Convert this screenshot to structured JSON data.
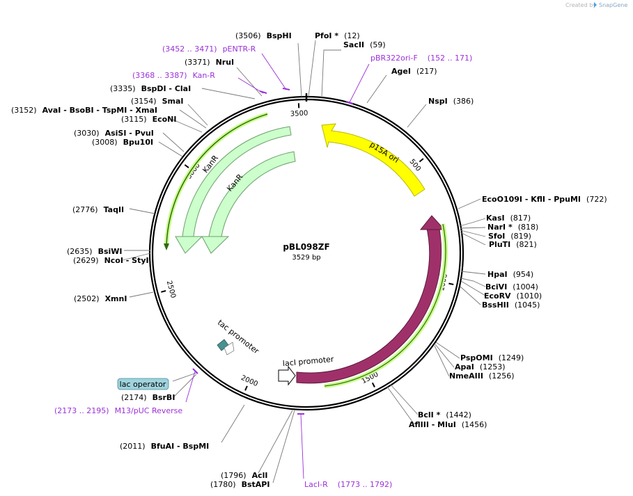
{
  "watermark": {
    "created_by": "Created by",
    "brand": "SnapGene"
  },
  "plasmid": {
    "name": "pBL098ZF",
    "size_label": "3529 bp",
    "length": 3529
  },
  "colors": {
    "p15a_fill": "#ffff00",
    "p15a_stroke": "#b8b800",
    "kanr_fill": "#ccffcc",
    "kanr_stroke": "#6aa06a",
    "laci_fill": "#a0306a",
    "laci_stroke": "#5a1a3a",
    "primer_strip": "#c8ff88",
    "primer_dark": "#2e6a10",
    "tac_fill": "#4a9090",
    "lacop_fill": "#9fd3dd",
    "primer_color": "#9b30d9"
  },
  "ticks": [
    {
      "pos": 500,
      "label": "500"
    },
    {
      "pos": 1000,
      "label": "1000"
    },
    {
      "pos": 1500,
      "label": "1500"
    },
    {
      "pos": 2000,
      "label": "2000"
    },
    {
      "pos": 2500,
      "label": "2500"
    },
    {
      "pos": 3000,
      "label": "3000"
    },
    {
      "pos": 3500,
      "label": "3500"
    }
  ],
  "features": {
    "p15a": {
      "label": "p15A ori"
    },
    "kanr_outer": {
      "label": "KanR"
    },
    "kanr_inner": {
      "label": "KanR"
    },
    "laci": {
      "label": "lacI"
    },
    "laci_promoter": {
      "label": "lacI promoter"
    },
    "tac_promoter": {
      "label": "tac promoter"
    },
    "lac_operator": {
      "label": "lac operator"
    }
  },
  "sites": [
    {
      "pos": "(3506)",
      "name": "BspHI"
    },
    {
      "pos": "(12)",
      "name": "PfoI *"
    },
    {
      "pos": "(59)",
      "name": "SacII"
    },
    {
      "pos": "(217)",
      "name": "AgeI"
    },
    {
      "pos": "(386)",
      "name": "NspI"
    },
    {
      "pos": "(722)",
      "name": "EcoO109I - KflI - PpuMI"
    },
    {
      "pos": "(817)",
      "name": "KasI"
    },
    {
      "pos": "(818)",
      "name": "NarI *"
    },
    {
      "pos": "(819)",
      "name": "SfoI"
    },
    {
      "pos": "(821)",
      "name": "PluTI"
    },
    {
      "pos": "(954)",
      "name": "HpaI"
    },
    {
      "pos": "(1004)",
      "name": "BciVI"
    },
    {
      "pos": "(1010)",
      "name": "EcoRV"
    },
    {
      "pos": "(1045)",
      "name": "BssHII"
    },
    {
      "pos": "(1249)",
      "name": "PspOMI"
    },
    {
      "pos": "(1253)",
      "name": "ApaI"
    },
    {
      "pos": "(1256)",
      "name": "NmeAIII"
    },
    {
      "pos": "(1442)",
      "name": "BclI *"
    },
    {
      "pos": "(1456)",
      "name": "AflIII - MluI"
    },
    {
      "pos": "(1796)",
      "name": "AclI"
    },
    {
      "pos": "(1780)",
      "name": "BstAPI"
    },
    {
      "pos": "(2011)",
      "name": "BfuAI - BspMI"
    },
    {
      "pos": "(2174)",
      "name": "BsrBI"
    },
    {
      "pos": "(2502)",
      "name": "XmnI"
    },
    {
      "pos": "(2635)",
      "name": "BsiWI"
    },
    {
      "pos": "(2629)",
      "name": "NcoI - StyI"
    },
    {
      "pos": "(2776)",
      "name": "TaqII"
    },
    {
      "pos": "(3008)",
      "name": "Bpu10I"
    },
    {
      "pos": "(3030)",
      "name": "AsiSI - PvuI"
    },
    {
      "pos": "(3115)",
      "name": "EcoNI"
    },
    {
      "pos": "(3152)",
      "name": "AvaI - BsoBI - TspMI - XmaI"
    },
    {
      "pos": "(3154)",
      "name": "SmaI"
    },
    {
      "pos": "(3335)",
      "name": "BspDI - ClaI"
    },
    {
      "pos": "(3371)",
      "name": "NruI"
    }
  ],
  "primers": [
    {
      "label": "pENTR-R",
      "range": "(3452 .. 3471)"
    },
    {
      "label": "Kan-R",
      "range": "(3368 .. 3387)"
    },
    {
      "label": "pBR322ori-F",
      "range": "(152 .. 171)"
    },
    {
      "label": "LacI-R",
      "range": "(1773 .. 1792)"
    },
    {
      "label": "M13/pUC Reverse",
      "range": "(2173 .. 2195)"
    }
  ]
}
